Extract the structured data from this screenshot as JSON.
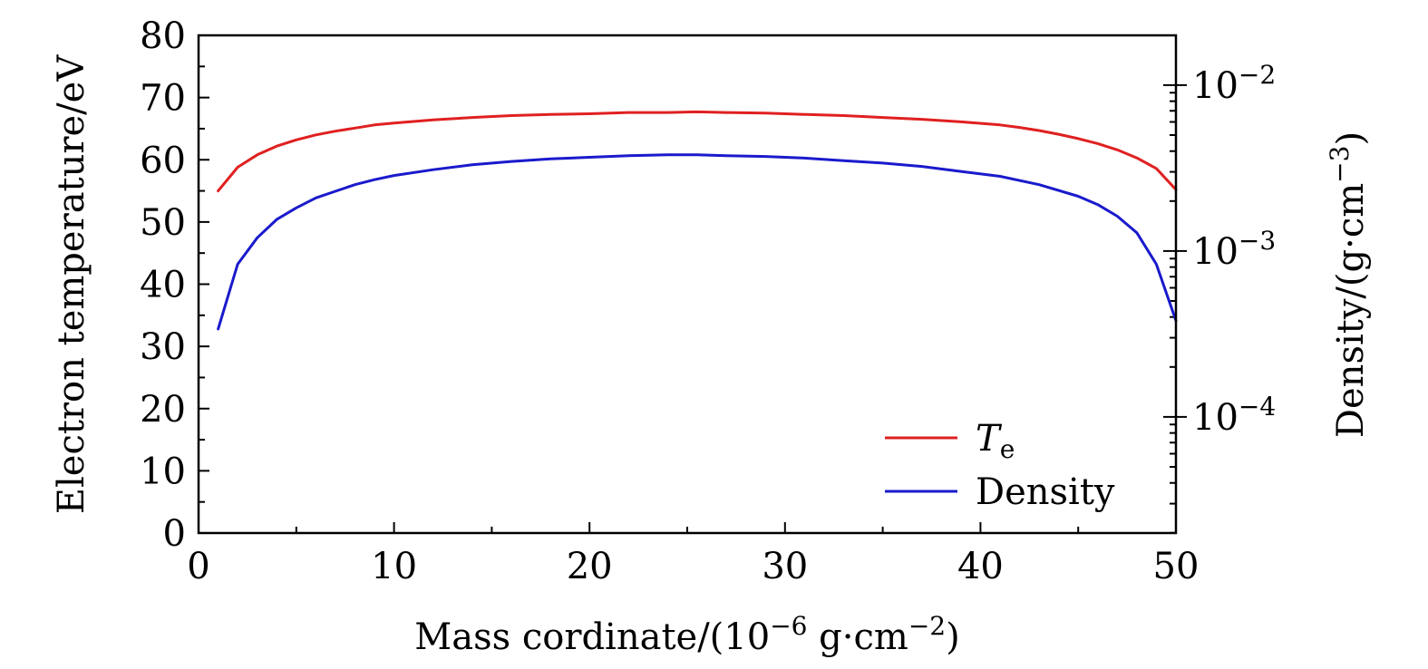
{
  "chart_data": {
    "type": "line",
    "title": "",
    "xlabel": "Mass cordinate/(10",
    "xlabel_sup": "−6",
    "xlabel_tail": " g·cm",
    "xlabel_tail_sup": "−2",
    "xlabel_close": ")",
    "ylabel": "Electron temperature/eV",
    "y2label": "Density/(g·cm",
    "y2label_sup": "−3",
    "y2label_close": ")",
    "xlim": [
      0,
      50
    ],
    "ylim": [
      0,
      80
    ],
    "y2lim_log10": [
      -4.7,
      -1.7
    ],
    "x_ticks": [
      "0",
      "10",
      "20",
      "30",
      "40",
      "50"
    ],
    "y_ticks": [
      "0",
      "10",
      "20",
      "30",
      "40",
      "50",
      "60",
      "70",
      "80"
    ],
    "y2_ticks": [
      {
        "base": "10",
        "exp": "−2",
        "value": -2
      },
      {
        "base": "10",
        "exp": "−3",
        "value": -3
      },
      {
        "base": "10",
        "exp": "−4",
        "value": -4
      }
    ],
    "legend_position": "bottom-right",
    "legend": {
      "te_main": "T",
      "te_sub": "e",
      "density": "Density"
    },
    "series": [
      {
        "name": "Te",
        "axis": "left",
        "color": "#e02020",
        "x": [
          1,
          2,
          3,
          4,
          5,
          6,
          7,
          8,
          9,
          10,
          12,
          14,
          16,
          18,
          20,
          22,
          24,
          25.5,
          27,
          29,
          31,
          33,
          35,
          37,
          39,
          41,
          42,
          43,
          44,
          45,
          46,
          47,
          48,
          49,
          50
        ],
        "y": [
          55,
          58.8,
          60.8,
          62.2,
          63.2,
          64,
          64.6,
          65.1,
          65.6,
          65.9,
          66.4,
          66.8,
          67.1,
          67.3,
          67.4,
          67.6,
          67.6,
          67.7,
          67.6,
          67.5,
          67.3,
          67.1,
          66.8,
          66.5,
          66.1,
          65.6,
          65.2,
          64.7,
          64.1,
          63.4,
          62.6,
          61.6,
          60.3,
          58.6,
          55.2
        ]
      },
      {
        "name": "Density",
        "axis": "right",
        "color": "#1a1acc",
        "x": [
          1,
          2,
          3,
          4,
          5,
          6,
          7,
          8,
          9,
          10,
          12,
          14,
          16,
          18,
          20,
          22,
          24,
          25.5,
          27,
          29,
          31,
          33,
          35,
          37,
          39,
          41,
          43,
          45,
          46,
          47,
          48,
          49,
          50
        ],
        "log10_y": [
          -3.47,
          -3.08,
          -2.92,
          -2.81,
          -2.74,
          -2.68,
          -2.64,
          -2.6,
          -2.57,
          -2.545,
          -2.51,
          -2.48,
          -2.46,
          -2.445,
          -2.435,
          -2.425,
          -2.42,
          -2.42,
          -2.425,
          -2.43,
          -2.44,
          -2.455,
          -2.47,
          -2.49,
          -2.52,
          -2.55,
          -2.6,
          -2.67,
          -2.72,
          -2.79,
          -2.89,
          -3.08,
          -3.42
        ]
      }
    ]
  }
}
